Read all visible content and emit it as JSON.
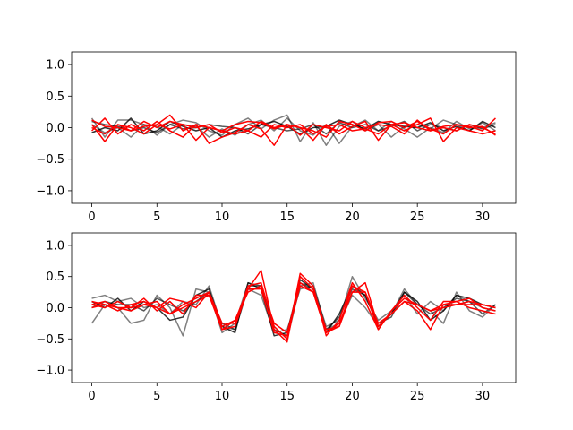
{
  "chart_data": [
    {
      "type": "line",
      "xlim": [
        -1.55,
        32.55
      ],
      "ylim": [
        -1.2,
        1.2
      ],
      "xticks": [
        0,
        5,
        10,
        15,
        20,
        25,
        30
      ],
      "yticks": [
        -1.0,
        -0.5,
        0.0,
        0.5,
        1.0
      ],
      "xtick_labels": [
        "0",
        "5",
        "10",
        "15",
        "20",
        "25",
        "30"
      ],
      "ytick_labels": [
        "−1.0",
        "−0.5",
        "0.0",
        "0.5",
        "1.0"
      ],
      "x": [
        0,
        1,
        2,
        3,
        4,
        5,
        6,
        7,
        8,
        9,
        10,
        11,
        12,
        13,
        14,
        15,
        16,
        17,
        18,
        19,
        20,
        21,
        22,
        23,
        24,
        25,
        26,
        27,
        28,
        29,
        30,
        31
      ],
      "series": [
        {
          "color": "#000000",
          "opacity": 0.5,
          "values": [
            0.15,
            -0.15,
            0.12,
            0.12,
            0.05,
            -0.12,
            0.05,
            0.12,
            0.08,
            -0.05,
            -0.12,
            0.05,
            0.15,
            -0.02,
            0.12,
            0.2,
            -0.22,
            0.08,
            -0.28,
            0.02,
            0.1,
            -0.05,
            0.05,
            -0.15,
            0.02,
            0.05,
            -0.02,
            0.12,
            0.05,
            -0.05,
            0.08,
            -0.05
          ]
        },
        {
          "color": "#000000",
          "opacity": 0.5,
          "values": [
            0.05,
            -0.08,
            0.0,
            -0.15,
            0.05,
            0.02,
            -0.1,
            0.05,
            0.02,
            -0.15,
            -0.02,
            -0.12,
            0.05,
            0.12,
            -0.05,
            0.15,
            -0.05,
            -0.12,
            0.05,
            -0.25,
            0.02,
            0.12,
            -0.05,
            0.1,
            -0.02,
            -0.15,
            0.0,
            -0.08,
            0.1,
            -0.02,
            0.0,
            0.08
          ]
        },
        {
          "color": "#000000",
          "opacity": 0.8,
          "values": [
            -0.08,
            0.0,
            -0.05,
            0.15,
            -0.1,
            -0.05,
            0.1,
            0.02,
            -0.05,
            0.0,
            -0.15,
            -0.05,
            -0.02,
            0.05,
            0.1,
            0.02,
            -0.1,
            0.0,
            0.02,
            0.12,
            0.05,
            -0.02,
            0.1,
            0.05,
            0.02,
            0.0,
            0.08,
            -0.05,
            0.02,
            -0.05,
            0.1,
            0.0
          ]
        },
        {
          "color": "#000000",
          "opacity": 0.65,
          "values": [
            0.1,
            0.05,
            0.02,
            -0.05,
            0.0,
            -0.08,
            0.05,
            -0.02,
            0.0,
            0.05,
            0.02,
            0.0,
            -0.1,
            0.05,
            0.0,
            -0.05,
            -0.02,
            0.05,
            -0.1,
            0.08,
            0.0,
            0.05,
            -0.05,
            0.02,
            0.1,
            -0.05,
            0.05,
            0.0,
            -0.05,
            0.05,
            -0.02,
            0.05
          ]
        },
        {
          "color": "#ff0000",
          "opacity": 1.0,
          "values": [
            0.05,
            -0.22,
            0.05,
            -0.05,
            0.1,
            0.0,
            0.1,
            0.05,
            -0.2,
            0.0,
            -0.05,
            0.05,
            0.1,
            0.08,
            -0.02,
            0.05,
            0.0,
            -0.05,
            -0.15,
            0.1,
            0.05,
            -0.05,
            0.08,
            0.1,
            0.0,
            0.1,
            -0.02,
            -0.1,
            0.05,
            0.02,
            -0.05,
            0.15
          ]
        },
        {
          "color": "#ff0000",
          "opacity": 1.0,
          "values": [
            -0.05,
            0.15,
            -0.1,
            0.05,
            -0.05,
            0.1,
            -0.05,
            -0.15,
            0.05,
            -0.25,
            -0.15,
            -0.08,
            0.05,
            -0.02,
            -0.28,
            0.05,
            0.0,
            -0.2,
            0.05,
            -0.1,
            0.02,
            0.1,
            -0.2,
            0.05,
            -0.05,
            0.05,
            0.15,
            -0.22,
            0.0,
            -0.05,
            -0.1,
            -0.05
          ]
        },
        {
          "color": "#ff0000",
          "opacity": 1.0,
          "values": [
            0.12,
            0.02,
            0.0,
            -0.05,
            0.02,
            0.05,
            0.2,
            -0.05,
            0.05,
            0.0,
            -0.05,
            -0.1,
            -0.05,
            0.1,
            0.0,
            0.05,
            -0.12,
            0.05,
            0.0,
            -0.05,
            0.1,
            0.0,
            0.05,
            0.02,
            -0.1,
            0.12,
            -0.05,
            0.0,
            -0.05,
            0.05,
            0.0,
            -0.1
          ]
        },
        {
          "color": "#ff0000",
          "opacity": 1.0,
          "values": [
            0.0,
            -0.1,
            0.05,
            0.0,
            -0.1,
            0.05,
            -0.02,
            0.05,
            0.0,
            0.05,
            -0.08,
            0.0,
            -0.05,
            -0.15,
            0.05,
            0.0,
            0.05,
            -0.1,
            0.02,
            0.05,
            -0.05,
            -0.02,
            -0.1,
            0.05,
            0.08,
            0.0,
            -0.05,
            0.02,
            0.05,
            0.0,
            0.02,
            -0.12
          ]
        }
      ]
    },
    {
      "type": "line",
      "xlim": [
        -1.55,
        32.55
      ],
      "ylim": [
        -1.2,
        1.2
      ],
      "xticks": [
        0,
        5,
        10,
        15,
        20,
        25,
        30
      ],
      "yticks": [
        -1.0,
        -0.5,
        0.0,
        0.5,
        1.0
      ],
      "xtick_labels": [
        "0",
        "5",
        "10",
        "15",
        "20",
        "25",
        "30"
      ],
      "ytick_labels": [
        "−1.0",
        "−0.5",
        "0.0",
        "0.5",
        "1.0"
      ],
      "x": [
        0,
        1,
        2,
        3,
        4,
        5,
        6,
        7,
        8,
        9,
        10,
        11,
        12,
        13,
        14,
        15,
        16,
        17,
        18,
        19,
        20,
        21,
        22,
        23,
        24,
        25,
        26,
        27,
        28,
        29,
        30,
        31
      ],
      "series": [
        {
          "color": "#000000",
          "opacity": 0.5,
          "values": [
            -0.25,
            0.05,
            0.0,
            -0.25,
            -0.2,
            0.2,
            0.0,
            -0.45,
            0.3,
            0.25,
            -0.4,
            -0.25,
            0.4,
            0.35,
            -0.3,
            -0.5,
            0.35,
            0.4,
            -0.35,
            -0.25,
            0.2,
            0.0,
            -0.3,
            -0.1,
            0.3,
            0.05,
            -0.05,
            -0.25,
            0.25,
            -0.05,
            -0.15,
            0.05
          ]
        },
        {
          "color": "#000000",
          "opacity": 0.5,
          "values": [
            0.15,
            0.2,
            0.1,
            0.15,
            0.0,
            0.05,
            -0.1,
            0.1,
            0.05,
            0.35,
            -0.3,
            -0.35,
            0.3,
            0.2,
            -0.4,
            -0.35,
            0.3,
            0.35,
            -0.3,
            -0.2,
            0.5,
            0.15,
            -0.2,
            -0.05,
            0.2,
            -0.1,
            0.1,
            -0.05,
            0.2,
            0.1,
            0.0,
            -0.05
          ]
        },
        {
          "color": "#000000",
          "opacity": 0.8,
          "values": [
            0.1,
            0.0,
            0.15,
            -0.05,
            0.1,
            0.0,
            -0.2,
            -0.15,
            0.2,
            0.3,
            -0.3,
            -0.4,
            0.4,
            0.3,
            -0.45,
            -0.4,
            0.45,
            0.3,
            -0.4,
            -0.1,
            0.35,
            0.2,
            -0.3,
            -0.1,
            0.25,
            0.1,
            -0.2,
            -0.05,
            0.2,
            0.15,
            0.05,
            0.0
          ]
        },
        {
          "color": "#000000",
          "opacity": 0.65,
          "values": [
            0.0,
            0.1,
            0.05,
            0.05,
            -0.05,
            0.15,
            0.05,
            -0.05,
            0.1,
            0.25,
            -0.25,
            -0.35,
            0.35,
            0.35,
            -0.35,
            -0.45,
            0.4,
            0.3,
            -0.35,
            -0.15,
            0.3,
            0.2,
            -0.25,
            -0.15,
            0.25,
            0.05,
            -0.1,
            0.0,
            0.15,
            0.1,
            -0.1,
            0.05
          ]
        },
        {
          "color": "#ff0000",
          "opacity": 1.0,
          "values": [
            0.05,
            0.0,
            0.1,
            0.0,
            0.15,
            -0.05,
            0.1,
            -0.1,
            0.2,
            0.2,
            -0.35,
            -0.3,
            0.3,
            0.6,
            -0.35,
            -0.55,
            0.5,
            0.3,
            -0.35,
            -0.3,
            0.35,
            0.25,
            -0.35,
            -0.05,
            0.2,
            0.0,
            -0.2,
            0.1,
            0.1,
            0.0,
            -0.05,
            -0.1
          ]
        },
        {
          "color": "#ff0000",
          "opacity": 1.0,
          "values": [
            0.1,
            0.05,
            -0.05,
            0.05,
            0.1,
            0.0,
            -0.1,
            0.05,
            0.15,
            0.25,
            -0.25,
            -0.25,
            0.35,
            0.4,
            -0.3,
            -0.5,
            0.55,
            0.35,
            -0.45,
            -0.2,
            0.4,
            0.1,
            -0.35,
            -0.05,
            0.15,
            0.05,
            -0.05,
            0.05,
            0.1,
            0.15,
            0.0,
            -0.05
          ]
        },
        {
          "color": "#ff0000",
          "opacity": 1.0,
          "values": [
            0.0,
            0.05,
            0.0,
            -0.05,
            0.05,
            0.1,
            -0.1,
            0.0,
            0.1,
            0.2,
            -0.3,
            -0.2,
            0.25,
            0.35,
            -0.25,
            -0.4,
            0.4,
            0.25,
            -0.4,
            -0.25,
            0.25,
            0.4,
            -0.3,
            -0.1,
            0.1,
            -0.05,
            -0.35,
            0.05,
            0.05,
            0.05,
            0.05,
            0.0
          ]
        },
        {
          "color": "#ff0000",
          "opacity": 1.0,
          "values": [
            0.05,
            0.1,
            0.0,
            0.0,
            0.05,
            0.0,
            0.15,
            0.1,
            0.0,
            0.25,
            -0.35,
            -0.2,
            0.3,
            0.3,
            -0.4,
            -0.45,
            0.35,
            0.25,
            -0.4,
            -0.3,
            0.25,
            0.25,
            -0.25,
            -0.1,
            0.1,
            0.05,
            -0.05,
            0.0,
            0.05,
            0.1,
            0.05,
            0.0
          ]
        }
      ]
    }
  ]
}
